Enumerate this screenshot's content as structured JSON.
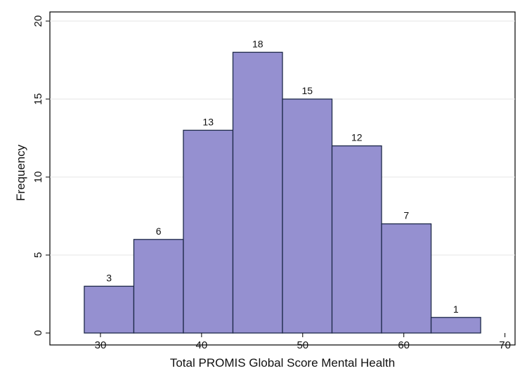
{
  "chart_data": {
    "type": "bar",
    "subtype": "histogram",
    "title": "",
    "xlabel": "Total PROMIS Global Score Mental Health",
    "ylabel": "Frequency",
    "bins": [
      {
        "start": 28.4,
        "end": 33.3,
        "value": 3
      },
      {
        "start": 33.3,
        "end": 38.2,
        "value": 6
      },
      {
        "start": 38.2,
        "end": 43.1,
        "value": 13
      },
      {
        "start": 43.1,
        "end": 48.0,
        "value": 18
      },
      {
        "start": 48.0,
        "end": 52.9,
        "value": 15
      },
      {
        "start": 52.9,
        "end": 57.8,
        "value": 12
      },
      {
        "start": 57.8,
        "end": 62.7,
        "value": 7
      },
      {
        "start": 62.7,
        "end": 67.6,
        "value": 1
      }
    ],
    "xlim": [
      25,
      71
    ],
    "ylim": [
      0,
      20
    ],
    "xticks": [
      30,
      40,
      50,
      60,
      70
    ],
    "yticks": [
      0,
      5,
      10,
      15,
      20
    ],
    "grid": "horizontal",
    "legend": "none",
    "bar_color": "#9590d0",
    "bar_edge_color": "#1e2a4a",
    "data_labels": true
  }
}
